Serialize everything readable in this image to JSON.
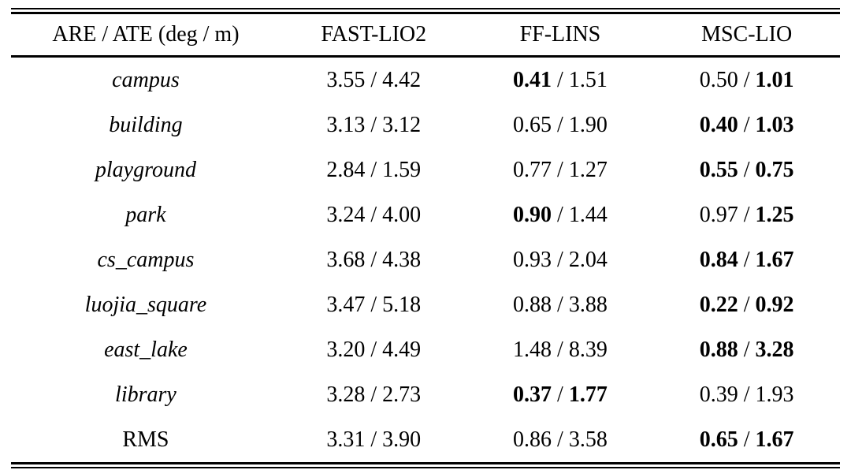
{
  "table": {
    "header": {
      "metric_col": "ARE / ATE (deg / m)",
      "method_cols": [
        "FAST-LIO2",
        "FF-LINS",
        "MSC-LIO"
      ]
    },
    "separator": "/",
    "colors": {
      "text": "#000000",
      "rules": "#000000",
      "background": "#ffffff"
    },
    "rows": [
      {
        "label": "campus",
        "italic": true,
        "cells": [
          {
            "are": {
              "text": "3.55",
              "bold": false
            },
            "ate": {
              "text": "4.42",
              "bold": false
            }
          },
          {
            "are": {
              "text": "0.41",
              "bold": true
            },
            "ate": {
              "text": "1.51",
              "bold": false
            }
          },
          {
            "are": {
              "text": "0.50",
              "bold": false
            },
            "ate": {
              "text": "1.01",
              "bold": true
            }
          }
        ]
      },
      {
        "label": "building",
        "italic": true,
        "cells": [
          {
            "are": {
              "text": "3.13",
              "bold": false
            },
            "ate": {
              "text": "3.12",
              "bold": false
            }
          },
          {
            "are": {
              "text": "0.65",
              "bold": false
            },
            "ate": {
              "text": "1.90",
              "bold": false
            }
          },
          {
            "are": {
              "text": "0.40",
              "bold": true
            },
            "ate": {
              "text": "1.03",
              "bold": true
            }
          }
        ]
      },
      {
        "label": "playground",
        "italic": true,
        "cells": [
          {
            "are": {
              "text": "2.84",
              "bold": false
            },
            "ate": {
              "text": "1.59",
              "bold": false
            }
          },
          {
            "are": {
              "text": "0.77",
              "bold": false
            },
            "ate": {
              "text": "1.27",
              "bold": false
            }
          },
          {
            "are": {
              "text": "0.55",
              "bold": true
            },
            "ate": {
              "text": "0.75",
              "bold": true
            }
          }
        ]
      },
      {
        "label": "park",
        "italic": true,
        "cells": [
          {
            "are": {
              "text": "3.24",
              "bold": false
            },
            "ate": {
              "text": "4.00",
              "bold": false
            }
          },
          {
            "are": {
              "text": "0.90",
              "bold": true
            },
            "ate": {
              "text": "1.44",
              "bold": false
            }
          },
          {
            "are": {
              "text": "0.97",
              "bold": false
            },
            "ate": {
              "text": "1.25",
              "bold": true
            }
          }
        ]
      },
      {
        "label": "cs_campus",
        "italic": true,
        "cells": [
          {
            "are": {
              "text": "3.68",
              "bold": false
            },
            "ate": {
              "text": "4.38",
              "bold": false
            }
          },
          {
            "are": {
              "text": "0.93",
              "bold": false
            },
            "ate": {
              "text": "2.04",
              "bold": false
            }
          },
          {
            "are": {
              "text": "0.84",
              "bold": true
            },
            "ate": {
              "text": "1.67",
              "bold": true
            }
          }
        ]
      },
      {
        "label": "luojia_square",
        "italic": true,
        "cells": [
          {
            "are": {
              "text": "3.47",
              "bold": false
            },
            "ate": {
              "text": "5.18",
              "bold": false
            }
          },
          {
            "are": {
              "text": "0.88",
              "bold": false
            },
            "ate": {
              "text": "3.88",
              "bold": false
            }
          },
          {
            "are": {
              "text": "0.22",
              "bold": true
            },
            "ate": {
              "text": "0.92",
              "bold": true
            }
          }
        ]
      },
      {
        "label": "east_lake",
        "italic": true,
        "cells": [
          {
            "are": {
              "text": "3.20",
              "bold": false
            },
            "ate": {
              "text": "4.49",
              "bold": false
            }
          },
          {
            "are": {
              "text": "1.48",
              "bold": false
            },
            "ate": {
              "text": "8.39",
              "bold": false
            }
          },
          {
            "are": {
              "text": "0.88",
              "bold": true
            },
            "ate": {
              "text": "3.28",
              "bold": true
            }
          }
        ]
      },
      {
        "label": "library",
        "italic": true,
        "cells": [
          {
            "are": {
              "text": "3.28",
              "bold": false
            },
            "ate": {
              "text": "2.73",
              "bold": false
            }
          },
          {
            "are": {
              "text": "0.37",
              "bold": true
            },
            "ate": {
              "text": "1.77",
              "bold": true
            }
          },
          {
            "are": {
              "text": "0.39",
              "bold": false
            },
            "ate": {
              "text": "1.93",
              "bold": false
            }
          }
        ]
      },
      {
        "label": "RMS",
        "italic": false,
        "cells": [
          {
            "are": {
              "text": "3.31",
              "bold": false
            },
            "ate": {
              "text": "3.90",
              "bold": false
            }
          },
          {
            "are": {
              "text": "0.86",
              "bold": false
            },
            "ate": {
              "text": "3.58",
              "bold": false
            }
          },
          {
            "are": {
              "text": "0.65",
              "bold": true
            },
            "ate": {
              "text": "1.67",
              "bold": true
            }
          }
        ]
      }
    ]
  }
}
